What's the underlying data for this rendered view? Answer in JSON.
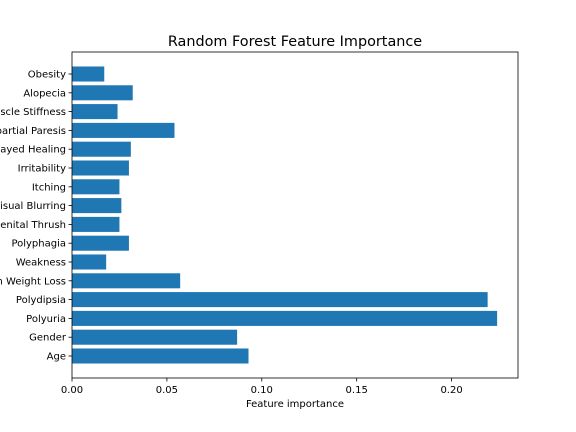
{
  "chart_data": {
    "type": "bar",
    "orientation": "horizontal",
    "title": "Random Forest Feature Importance",
    "xlabel": "Feature importance",
    "ylabel": "",
    "xlim": [
      0,
      0.235
    ],
    "xticks": [
      0.0,
      0.05,
      0.1,
      0.15,
      0.2
    ],
    "xtick_labels": [
      "0.00",
      "0.05",
      "0.10",
      "0.15",
      "0.20"
    ],
    "grid": false,
    "bar_color": "#1f77b4",
    "categories": [
      "Age",
      "Gender",
      "Polyuria",
      "Polydipsia",
      "sudden Weight Loss",
      "Weakness",
      "Polyphagia",
      "Genital Thrush",
      "Visual Blurring",
      "Itching",
      "Irritability",
      "delayed Healing",
      "partial Paresis",
      "muscle Stiffness",
      "Alopecia",
      "Obesity"
    ],
    "values": [
      0.093,
      0.087,
      0.224,
      0.219,
      0.057,
      0.018,
      0.03,
      0.025,
      0.026,
      0.025,
      0.03,
      0.031,
      0.054,
      0.024,
      0.032,
      0.017
    ]
  }
}
